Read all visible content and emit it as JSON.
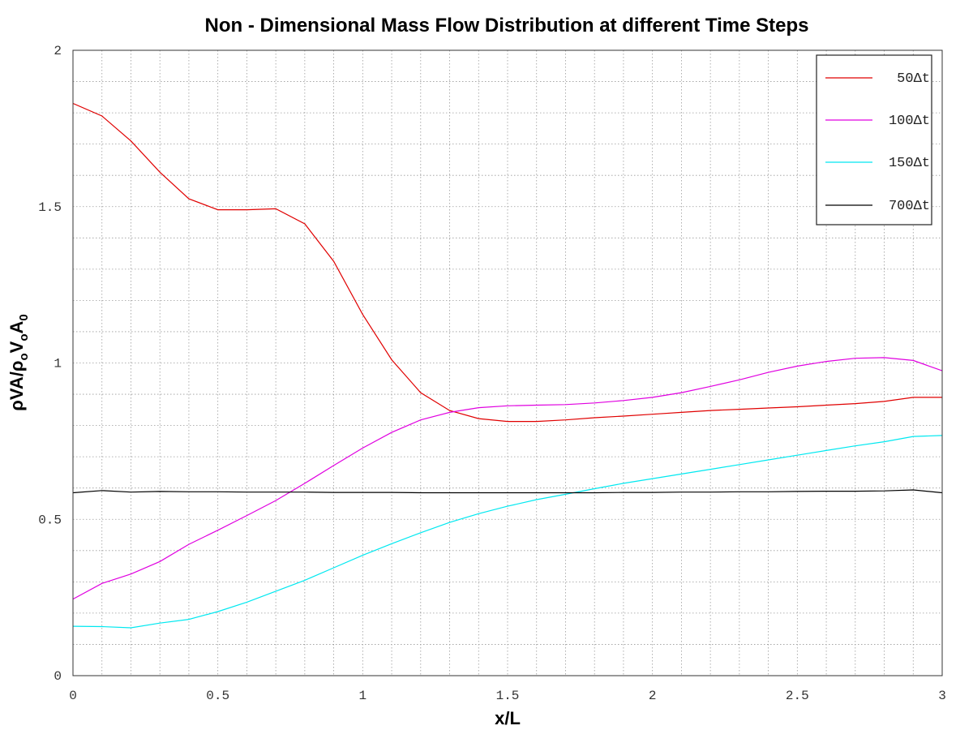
{
  "chart_data": {
    "type": "line",
    "title": "Non - Dimensional Mass Flow Distribution at different Time Steps",
    "xlabel": "x/L",
    "ylabel_parts": {
      "p1": "ρVA/ρ",
      "s1": "o",
      "p2": "V",
      "s2": "o",
      "p3": "A",
      "s3": "0"
    },
    "xlim": [
      0,
      3
    ],
    "ylim": [
      0,
      2
    ],
    "xticks": [
      0,
      0.5,
      1,
      1.5,
      2,
      2.5,
      3
    ],
    "xtick_labels": [
      "0",
      "0.5",
      "1",
      "1.5",
      "2",
      "2.5",
      "3"
    ],
    "yticks": [
      0,
      0.5,
      1,
      1.5,
      2
    ],
    "ytick_labels": [
      "0",
      "0.5",
      "1",
      "1.5",
      "2"
    ],
    "grid": true,
    "legend_position": "top-right",
    "x": [
      0,
      0.1,
      0.2,
      0.3,
      0.4,
      0.5,
      0.6,
      0.7,
      0.8,
      0.9,
      1.0,
      1.1,
      1.2,
      1.3,
      1.4,
      1.5,
      1.6,
      1.7,
      1.8,
      1.9,
      2.0,
      2.1,
      2.2,
      2.3,
      2.4,
      2.5,
      2.6,
      2.7,
      2.8,
      2.9,
      3.0
    ],
    "series": [
      {
        "name": "50Δt",
        "label_display": " 50Δt",
        "color": "#e00000",
        "values": [
          1.83,
          1.79,
          1.71,
          1.61,
          1.525,
          1.49,
          1.49,
          1.493,
          1.445,
          1.325,
          1.155,
          1.01,
          0.905,
          0.848,
          0.822,
          0.813,
          0.813,
          0.818,
          0.825,
          0.83,
          0.836,
          0.842,
          0.848,
          0.852,
          0.856,
          0.86,
          0.865,
          0.87,
          0.877,
          0.89,
          0.89
        ]
      },
      {
        "name": "100Δt",
        "label_display": "100Δt",
        "color": "#e000e0",
        "values": [
          0.245,
          0.295,
          0.325,
          0.365,
          0.42,
          0.465,
          0.512,
          0.56,
          0.615,
          0.672,
          0.728,
          0.778,
          0.818,
          0.842,
          0.857,
          0.863,
          0.865,
          0.867,
          0.872,
          0.88,
          0.89,
          0.905,
          0.925,
          0.946,
          0.97,
          0.99,
          1.005,
          1.015,
          1.017,
          1.008,
          0.975
        ]
      },
      {
        "name": "150Δt",
        "label_display": "150Δt",
        "color": "#00e8f0",
        "values": [
          0.158,
          0.157,
          0.153,
          0.168,
          0.18,
          0.205,
          0.235,
          0.27,
          0.305,
          0.345,
          0.385,
          0.422,
          0.457,
          0.49,
          0.518,
          0.542,
          0.563,
          0.58,
          0.598,
          0.615,
          0.63,
          0.645,
          0.66,
          0.675,
          0.69,
          0.705,
          0.72,
          0.735,
          0.748,
          0.765,
          0.768
        ]
      },
      {
        "name": "700Δt",
        "label_display": "700Δt",
        "color": "#000000",
        "values": [
          0.585,
          0.592,
          0.587,
          0.589,
          0.588,
          0.588,
          0.587,
          0.587,
          0.587,
          0.586,
          0.586,
          0.586,
          0.585,
          0.585,
          0.585,
          0.585,
          0.585,
          0.585,
          0.585,
          0.586,
          0.586,
          0.587,
          0.587,
          0.588,
          0.588,
          0.589,
          0.59,
          0.59,
          0.591,
          0.594,
          0.585
        ]
      }
    ]
  }
}
